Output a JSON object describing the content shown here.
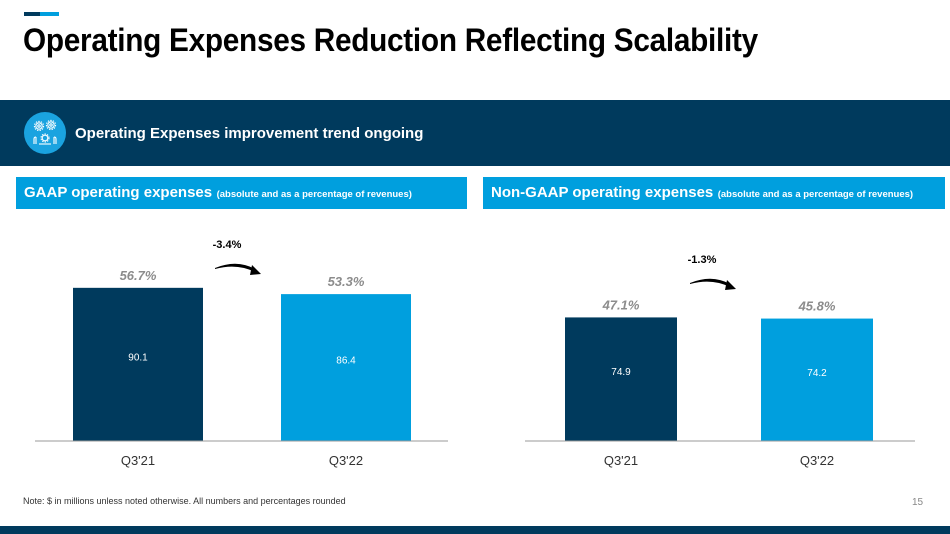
{
  "page": {
    "title": "Operating Expenses Reduction Reflecting Scalability",
    "page_number": "15",
    "note": "Note: $ in millions unless noted otherwise. All numbers and percentages rounded"
  },
  "banner": {
    "icon": "gears-people-icon",
    "text": "Operating Expenses improvement trend ongoing"
  },
  "colors": {
    "navy": "#003a5d",
    "blue": "#009fde",
    "percent_label": "#8c8c8c",
    "axis": "#999999"
  },
  "sections": {
    "left": {
      "title": "GAAP operating expenses",
      "subtitle": "(absolute and as a percentage of revenues)"
    },
    "right": {
      "title": "Non-GAAP operating expenses",
      "subtitle": "(absolute and as a percentage of revenues)"
    }
  },
  "chart_data": [
    {
      "type": "bar",
      "title": "GAAP operating expenses",
      "categories": [
        "Q3'21",
        "Q3'22"
      ],
      "values": [
        90.1,
        86.4
      ],
      "value_labels": [
        "90.1",
        "86.4"
      ],
      "percent_of_revenue": [
        56.7,
        53.3
      ],
      "percent_labels": [
        "56.7%",
        "53.3%"
      ],
      "change_label": "-3.4%",
      "xlabel": "",
      "ylabel": "",
      "grid": false,
      "legend": "none"
    },
    {
      "type": "bar",
      "title": "Non-GAAP operating expenses",
      "categories": [
        "Q3'21",
        "Q3'22"
      ],
      "values": [
        74.9,
        74.2
      ],
      "value_labels": [
        "74.9",
        "74.2"
      ],
      "percent_of_revenue": [
        47.1,
        45.8
      ],
      "percent_labels": [
        "47.1%",
        "45.8%"
      ],
      "change_label": "-1.3%",
      "xlabel": "",
      "ylabel": "",
      "grid": false,
      "legend": "none"
    }
  ]
}
